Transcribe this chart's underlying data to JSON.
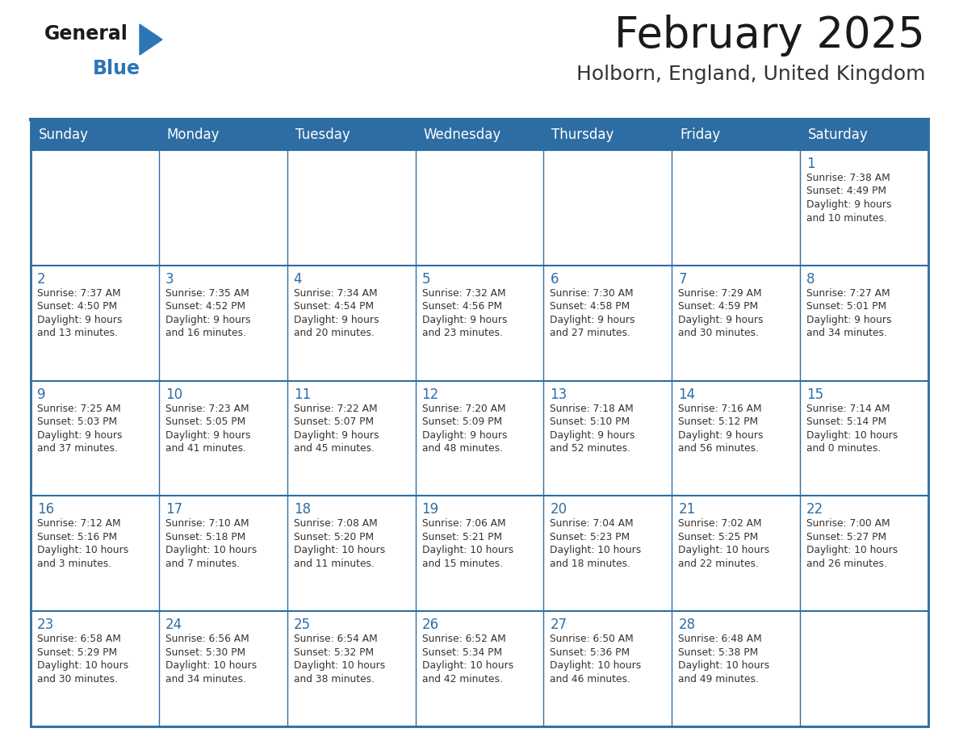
{
  "title": "February 2025",
  "subtitle": "Holborn, England, United Kingdom",
  "days_of_week": [
    "Sunday",
    "Monday",
    "Tuesday",
    "Wednesday",
    "Thursday",
    "Friday",
    "Saturday"
  ],
  "header_bg": "#2E6DA4",
  "header_text": "#FFFFFF",
  "cell_bg": "#FFFFFF",
  "cell_alt_bg": "#F2F2F2",
  "day_num_color": "#2E6DA4",
  "info_color": "#333333",
  "border_color": "#2E6DA4",
  "title_color": "#1a1a1a",
  "subtitle_color": "#333333",
  "logo_general_color": "#1a1a1a",
  "logo_blue_color": "#2E75B6",
  "weeks": [
    [
      {
        "day": null,
        "info": ""
      },
      {
        "day": null,
        "info": ""
      },
      {
        "day": null,
        "info": ""
      },
      {
        "day": null,
        "info": ""
      },
      {
        "day": null,
        "info": ""
      },
      {
        "day": null,
        "info": ""
      },
      {
        "day": 1,
        "info": "Sunrise: 7:38 AM\nSunset: 4:49 PM\nDaylight: 9 hours\nand 10 minutes."
      }
    ],
    [
      {
        "day": 2,
        "info": "Sunrise: 7:37 AM\nSunset: 4:50 PM\nDaylight: 9 hours\nand 13 minutes."
      },
      {
        "day": 3,
        "info": "Sunrise: 7:35 AM\nSunset: 4:52 PM\nDaylight: 9 hours\nand 16 minutes."
      },
      {
        "day": 4,
        "info": "Sunrise: 7:34 AM\nSunset: 4:54 PM\nDaylight: 9 hours\nand 20 minutes."
      },
      {
        "day": 5,
        "info": "Sunrise: 7:32 AM\nSunset: 4:56 PM\nDaylight: 9 hours\nand 23 minutes."
      },
      {
        "day": 6,
        "info": "Sunrise: 7:30 AM\nSunset: 4:58 PM\nDaylight: 9 hours\nand 27 minutes."
      },
      {
        "day": 7,
        "info": "Sunrise: 7:29 AM\nSunset: 4:59 PM\nDaylight: 9 hours\nand 30 minutes."
      },
      {
        "day": 8,
        "info": "Sunrise: 7:27 AM\nSunset: 5:01 PM\nDaylight: 9 hours\nand 34 minutes."
      }
    ],
    [
      {
        "day": 9,
        "info": "Sunrise: 7:25 AM\nSunset: 5:03 PM\nDaylight: 9 hours\nand 37 minutes."
      },
      {
        "day": 10,
        "info": "Sunrise: 7:23 AM\nSunset: 5:05 PM\nDaylight: 9 hours\nand 41 minutes."
      },
      {
        "day": 11,
        "info": "Sunrise: 7:22 AM\nSunset: 5:07 PM\nDaylight: 9 hours\nand 45 minutes."
      },
      {
        "day": 12,
        "info": "Sunrise: 7:20 AM\nSunset: 5:09 PM\nDaylight: 9 hours\nand 48 minutes."
      },
      {
        "day": 13,
        "info": "Sunrise: 7:18 AM\nSunset: 5:10 PM\nDaylight: 9 hours\nand 52 minutes."
      },
      {
        "day": 14,
        "info": "Sunrise: 7:16 AM\nSunset: 5:12 PM\nDaylight: 9 hours\nand 56 minutes."
      },
      {
        "day": 15,
        "info": "Sunrise: 7:14 AM\nSunset: 5:14 PM\nDaylight: 10 hours\nand 0 minutes."
      }
    ],
    [
      {
        "day": 16,
        "info": "Sunrise: 7:12 AM\nSunset: 5:16 PM\nDaylight: 10 hours\nand 3 minutes."
      },
      {
        "day": 17,
        "info": "Sunrise: 7:10 AM\nSunset: 5:18 PM\nDaylight: 10 hours\nand 7 minutes."
      },
      {
        "day": 18,
        "info": "Sunrise: 7:08 AM\nSunset: 5:20 PM\nDaylight: 10 hours\nand 11 minutes."
      },
      {
        "day": 19,
        "info": "Sunrise: 7:06 AM\nSunset: 5:21 PM\nDaylight: 10 hours\nand 15 minutes."
      },
      {
        "day": 20,
        "info": "Sunrise: 7:04 AM\nSunset: 5:23 PM\nDaylight: 10 hours\nand 18 minutes."
      },
      {
        "day": 21,
        "info": "Sunrise: 7:02 AM\nSunset: 5:25 PM\nDaylight: 10 hours\nand 22 minutes."
      },
      {
        "day": 22,
        "info": "Sunrise: 7:00 AM\nSunset: 5:27 PM\nDaylight: 10 hours\nand 26 minutes."
      }
    ],
    [
      {
        "day": 23,
        "info": "Sunrise: 6:58 AM\nSunset: 5:29 PM\nDaylight: 10 hours\nand 30 minutes."
      },
      {
        "day": 24,
        "info": "Sunrise: 6:56 AM\nSunset: 5:30 PM\nDaylight: 10 hours\nand 34 minutes."
      },
      {
        "day": 25,
        "info": "Sunrise: 6:54 AM\nSunset: 5:32 PM\nDaylight: 10 hours\nand 38 minutes."
      },
      {
        "day": 26,
        "info": "Sunrise: 6:52 AM\nSunset: 5:34 PM\nDaylight: 10 hours\nand 42 minutes."
      },
      {
        "day": 27,
        "info": "Sunrise: 6:50 AM\nSunset: 5:36 PM\nDaylight: 10 hours\nand 46 minutes."
      },
      {
        "day": 28,
        "info": "Sunrise: 6:48 AM\nSunset: 5:38 PM\nDaylight: 10 hours\nand 49 minutes."
      },
      {
        "day": null,
        "info": ""
      }
    ]
  ]
}
